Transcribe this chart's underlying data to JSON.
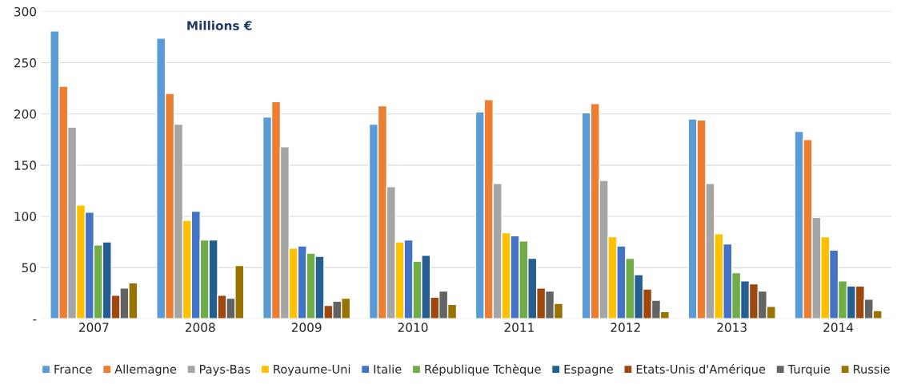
{
  "chart_data": {
    "type": "bar",
    "categories": [
      "2007",
      "2008",
      "2009",
      "2010",
      "2011",
      "2012",
      "2013",
      "2014"
    ],
    "series": [
      {
        "name": "France",
        "color": "#5b9bd5",
        "values": [
          281,
          274,
          197,
          190,
          202,
          201,
          195,
          183
        ]
      },
      {
        "name": "Allemagne",
        "color": "#ed7d31",
        "values": [
          227,
          220,
          212,
          208,
          214,
          210,
          194,
          175
        ]
      },
      {
        "name": "Pays-Bas",
        "color": "#a5a5a5",
        "values": [
          187,
          190,
          168,
          129,
          132,
          135,
          132,
          99
        ]
      },
      {
        "name": "Royaume-Uni",
        "color": "#ffc000",
        "values": [
          111,
          96,
          69,
          75,
          84,
          80,
          83,
          80
        ]
      },
      {
        "name": "Italie",
        "color": "#4472c4",
        "values": [
          104,
          105,
          71,
          77,
          81,
          71,
          73,
          67
        ]
      },
      {
        "name": "République Tchèque",
        "color": "#70ad47",
        "values": [
          72,
          77,
          64,
          56,
          76,
          59,
          45,
          37
        ]
      },
      {
        "name": "Espagne",
        "color": "#255e91",
        "values": [
          75,
          77,
          61,
          62,
          59,
          43,
          37,
          32
        ]
      },
      {
        "name": "Etats-Unis d'Amérique",
        "color": "#9e480e",
        "values": [
          23,
          23,
          13,
          21,
          30,
          29,
          34,
          32
        ]
      },
      {
        "name": "Turquie",
        "color": "#636363",
        "values": [
          30,
          20,
          17,
          27,
          27,
          18,
          27,
          19
        ]
      },
      {
        "name": "Russie",
        "color": "#997300",
        "values": [
          35,
          52,
          20,
          14,
          15,
          7,
          12,
          8
        ]
      }
    ],
    "annotations": [
      "Millions €"
    ],
    "ylim": [
      0,
      300
    ],
    "yticks": [
      {
        "value": 0,
        "label": "-"
      },
      50,
      100,
      150,
      200,
      250,
      300
    ],
    "grid": "y",
    "legend": "bottom"
  }
}
